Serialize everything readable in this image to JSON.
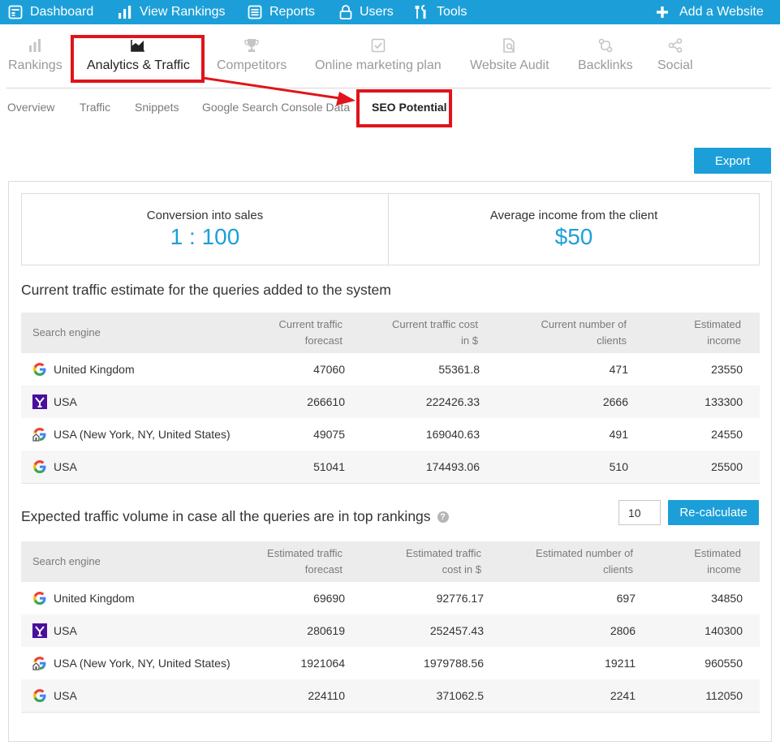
{
  "topnav": {
    "dashboard": "Dashboard",
    "view_rankings": "View Rankings",
    "reports": "Reports",
    "users": "Users",
    "tools": "Tools",
    "add_website": "Add a Website"
  },
  "tabs": [
    {
      "label": "Rankings",
      "icon": "bar-chart-icon"
    },
    {
      "label": "Analytics & Traffic",
      "icon": "analytics-icon",
      "active": true
    },
    {
      "label": "Competitors",
      "icon": "trophy-icon"
    },
    {
      "label": "Online marketing plan",
      "icon": "checkbox-icon"
    },
    {
      "label": "Website Audit",
      "icon": "audit-icon"
    },
    {
      "label": "Backlinks",
      "icon": "backlinks-icon"
    },
    {
      "label": "Social",
      "icon": "share-icon"
    }
  ],
  "subtabs": [
    {
      "label": "Overview"
    },
    {
      "label": "Traffic"
    },
    {
      "label": "Snippets"
    },
    {
      "label": "Google Search Console Data"
    },
    {
      "label": "SEO Potential",
      "active": true
    }
  ],
  "export_label": "Export",
  "kpis": {
    "conversion_label": "Conversion into sales",
    "conversion_value": "1 : 100",
    "income_label": "Average income from the client",
    "income_value": "$50"
  },
  "current": {
    "title": "Current traffic estimate for the queries added to the system",
    "headers": {
      "engine": "Search engine",
      "forecast_1": "Current traffic",
      "forecast_2": "forecast",
      "cost_1": "Current traffic cost",
      "cost_2": "in $",
      "clients_1": "Current number of",
      "clients_2": "clients",
      "income_1": "Estimated",
      "income_2": "income"
    },
    "rows": [
      {
        "engine": "United Kingdom",
        "icon": "google-icon",
        "forecast": "47060",
        "cost": "55361.8",
        "clients": "471",
        "income": "23550"
      },
      {
        "engine": "USA",
        "icon": "yahoo-icon",
        "forecast": "266610",
        "cost": "222426.33",
        "clients": "2666",
        "income": "133300"
      },
      {
        "engine": "USA (New York, NY, United States)",
        "icon": "google-local-icon",
        "forecast": "49075",
        "cost": "169040.63",
        "clients": "491",
        "income": "24550"
      },
      {
        "engine": "USA",
        "icon": "google-icon",
        "forecast": "51041",
        "cost": "174493.06",
        "clients": "510",
        "income": "25500"
      }
    ]
  },
  "expected": {
    "title": "Expected traffic volume in case all the queries are in top rankings",
    "input_value": "10",
    "recalc_label": "Re-calculate",
    "headers": {
      "engine": "Search engine",
      "forecast_1": "Estimated traffic",
      "forecast_2": "forecast",
      "cost_1": "Estimated traffic",
      "cost_2": "cost in $",
      "clients_1": "Estimated number of",
      "clients_2": "clients",
      "income_1": "Estimated",
      "income_2": "income"
    },
    "rows": [
      {
        "engine": "United Kingdom",
        "icon": "google-icon",
        "forecast": "69690",
        "cost": "92776.17",
        "clients": "697",
        "income": "34850"
      },
      {
        "engine": "USA",
        "icon": "yahoo-icon",
        "forecast": "280619",
        "cost": "252457.43",
        "clients": "2806",
        "income": "140300"
      },
      {
        "engine": "USA (New York, NY, United States)",
        "icon": "google-local-icon",
        "forecast": "1921064",
        "cost": "1979788.56",
        "clients": "19211",
        "income": "960550"
      },
      {
        "engine": "USA",
        "icon": "google-icon",
        "forecast": "224110",
        "cost": "371062.5",
        "clients": "2241",
        "income": "112050"
      }
    ]
  },
  "colors": {
    "accent": "#1c9fd8",
    "highlight": "#e0141a"
  }
}
